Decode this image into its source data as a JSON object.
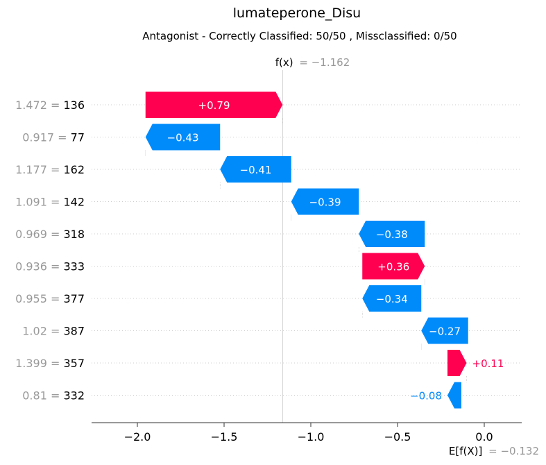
{
  "chart_data": {
    "type": "waterfall",
    "title": "lumateperone_Disu",
    "subtitle": "Antagonist - Correctly Classified: 50/50 , Missclassified: 0/50",
    "fx": {
      "label": "f(x)",
      "value_text": "= −1.162",
      "value": -1.162
    },
    "base": {
      "label": "E[f(X)]",
      "value_text": "= −0.132",
      "value": -0.132
    },
    "xlim": [
      -2.27,
      0.22
    ],
    "xticks": [
      {
        "value": -2.0,
        "label": "−2.0"
      },
      {
        "value": -1.5,
        "label": "−1.5"
      },
      {
        "value": -1.0,
        "label": "−1.0"
      },
      {
        "value": -0.5,
        "label": "−0.5"
      },
      {
        "value": 0.0,
        "label": "0.0"
      }
    ],
    "colors": {
      "positive": "#ff0051",
      "negative": "#008bfb",
      "muted": "#999999"
    },
    "features": [
      {
        "value": "1.472 =",
        "name": "136",
        "start": -1.953,
        "shap": 0.79,
        "label": "+0.79"
      },
      {
        "value": "0.917 =",
        "name": "77",
        "start": -1.523,
        "shap": -0.43,
        "label": "−0.43"
      },
      {
        "value": "1.177 =",
        "name": "162",
        "start": -1.113,
        "shap": -0.41,
        "label": "−0.41"
      },
      {
        "value": "1.091 =",
        "name": "142",
        "start": -0.723,
        "shap": -0.39,
        "label": "−0.39"
      },
      {
        "value": "0.969 =",
        "name": "318",
        "start": -0.343,
        "shap": -0.38,
        "label": "−0.38"
      },
      {
        "value": "0.936 =",
        "name": "333",
        "start": -0.703,
        "shap": 0.36,
        "label": "+0.36"
      },
      {
        "value": "0.955 =",
        "name": "377",
        "start": -0.363,
        "shap": -0.34,
        "label": "−0.34"
      },
      {
        "value": "1.02 =",
        "name": "387",
        "start": -0.093,
        "shap": -0.27,
        "label": "−0.27"
      },
      {
        "value": "1.399 =",
        "name": "357",
        "start": -0.212,
        "shap": 0.11,
        "label": "+0.11"
      },
      {
        "value": "0.81 =",
        "name": "332",
        "start": -0.132,
        "shap": -0.08,
        "label": "−0.08"
      }
    ]
  }
}
